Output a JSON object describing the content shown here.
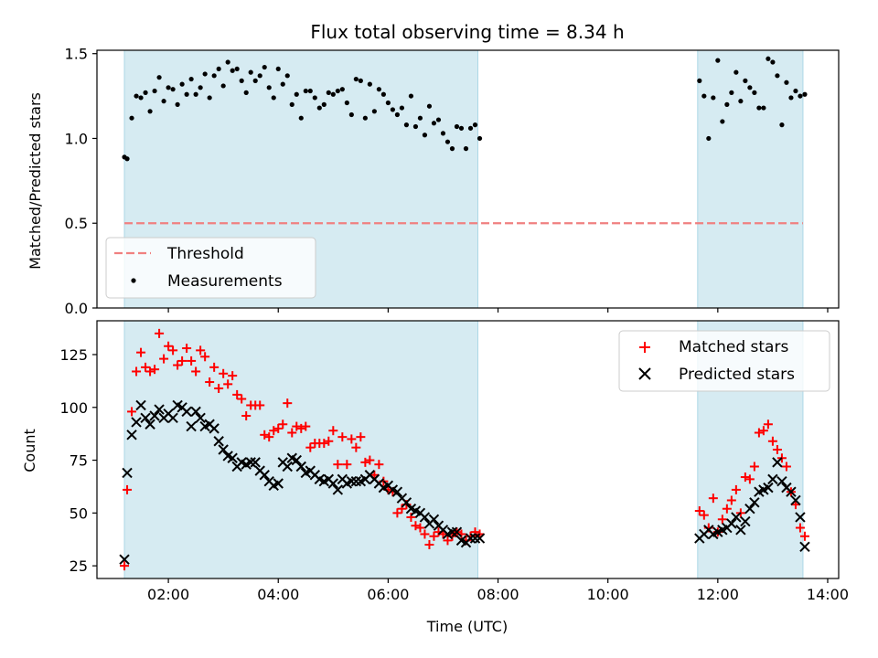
{
  "chart_data": [
    {
      "type": "scatter",
      "title": "Flux total observing time = 8.34 h",
      "ylabel": "Matched/Predicted stars",
      "xlabel": "",
      "ylim": [
        0,
        1.52
      ],
      "yticks": [
        "0.0",
        "0.5",
        "1.0",
        "1.5"
      ],
      "xlim": [
        "00:42",
        "14:12"
      ],
      "xticks": [
        "02:00",
        "04:00",
        "06:00",
        "08:00",
        "10:00",
        "12:00",
        "14:00"
      ],
      "shaded_intervals": [
        [
          "01:12",
          "07:38"
        ],
        [
          "11:38",
          "13:33"
        ]
      ],
      "threshold": {
        "name": "Threshold",
        "y": 0.5,
        "x_range": [
          "01:12",
          "13:33"
        ],
        "color": "#f08080"
      },
      "legend": {
        "placement": "lower-left",
        "entries": [
          "Threshold",
          "Measurements"
        ]
      },
      "series": [
        {
          "name": "Measurements",
          "color": "#000000",
          "marker": "dot",
          "x": [
            "01:12",
            "01:15",
            "01:20",
            "01:25",
            "01:30",
            "01:35",
            "01:40",
            "01:45",
            "01:50",
            "01:55",
            "02:00",
            "02:05",
            "02:10",
            "02:15",
            "02:20",
            "02:25",
            "02:30",
            "02:35",
            "02:40",
            "02:45",
            "02:50",
            "02:55",
            "03:00",
            "03:05",
            "03:10",
            "03:15",
            "03:20",
            "03:25",
            "03:30",
            "03:35",
            "03:40",
            "03:45",
            "03:50",
            "03:55",
            "04:00",
            "04:05",
            "04:10",
            "04:15",
            "04:20",
            "04:25",
            "04:30",
            "04:35",
            "04:40",
            "04:45",
            "04:50",
            "04:55",
            "05:00",
            "05:05",
            "05:10",
            "05:15",
            "05:20",
            "05:25",
            "05:30",
            "05:35",
            "05:40",
            "05:45",
            "05:50",
            "05:55",
            "06:00",
            "06:05",
            "06:10",
            "06:15",
            "06:20",
            "06:25",
            "06:30",
            "06:35",
            "06:40",
            "06:45",
            "06:50",
            "06:55",
            "07:00",
            "07:05",
            "07:10",
            "07:15",
            "07:20",
            "07:25",
            "07:30",
            "07:35",
            "07:40",
            "11:40",
            "11:45",
            "11:50",
            "11:55",
            "12:00",
            "12:05",
            "12:10",
            "12:15",
            "12:20",
            "12:25",
            "12:30",
            "12:35",
            "12:40",
            "12:45",
            "12:50",
            "12:55",
            "13:00",
            "13:05",
            "13:10",
            "13:15",
            "13:20",
            "13:25",
            "13:30",
            "13:35"
          ],
          "y": [
            0.89,
            0.88,
            1.12,
            1.25,
            1.24,
            1.27,
            1.16,
            1.28,
            1.36,
            1.22,
            1.3,
            1.29,
            1.2,
            1.32,
            1.26,
            1.35,
            1.26,
            1.3,
            1.38,
            1.24,
            1.37,
            1.41,
            1.31,
            1.45,
            1.4,
            1.41,
            1.34,
            1.27,
            1.39,
            1.34,
            1.37,
            1.42,
            1.3,
            1.24,
            1.41,
            1.32,
            1.37,
            1.2,
            1.26,
            1.12,
            1.28,
            1.28,
            1.24,
            1.18,
            1.2,
            1.27,
            1.26,
            1.28,
            1.29,
            1.21,
            1.14,
            1.35,
            1.34,
            1.12,
            1.32,
            1.16,
            1.29,
            1.26,
            1.21,
            1.17,
            1.14,
            1.18,
            1.08,
            1.25,
            1.07,
            1.12,
            1.02,
            1.19,
            1.09,
            1.11,
            1.03,
            0.98,
            0.94,
            1.07,
            1.06,
            0.94,
            1.06,
            1.08,
            1.0,
            1.34,
            1.25,
            1.0,
            1.24,
            1.46,
            1.1,
            1.2,
            1.27,
            1.39,
            1.22,
            1.34,
            1.3,
            1.27,
            1.18,
            1.18,
            1.47,
            1.45,
            1.37,
            1.08,
            1.33,
            1.24,
            1.28,
            1.25,
            1.26
          ]
        }
      ]
    },
    {
      "type": "scatter",
      "title": "",
      "ylabel": "Count",
      "xlabel": "Time (UTC)",
      "ylim": [
        19,
        141
      ],
      "yticks": [
        "25",
        "50",
        "75",
        "100",
        "125"
      ],
      "xlim": [
        "00:42",
        "14:12"
      ],
      "xticks": [
        "02:00",
        "04:00",
        "06:00",
        "08:00",
        "10:00",
        "12:00",
        "14:00"
      ],
      "shaded_intervals": [
        [
          "01:12",
          "07:38"
        ],
        [
          "11:38",
          "13:33"
        ]
      ],
      "legend": {
        "placement": "upper-right",
        "entries": [
          "Matched stars",
          "Predicted stars"
        ]
      },
      "series": [
        {
          "name": "Matched stars",
          "color": "#ff0000",
          "marker": "plus",
          "x": [
            "01:12",
            "01:15",
            "01:20",
            "01:25",
            "01:30",
            "01:35",
            "01:40",
            "01:45",
            "01:50",
            "01:55",
            "02:00",
            "02:05",
            "02:10",
            "02:15",
            "02:20",
            "02:25",
            "02:30",
            "02:35",
            "02:40",
            "02:45",
            "02:50",
            "02:55",
            "03:00",
            "03:05",
            "03:10",
            "03:15",
            "03:20",
            "03:25",
            "03:30",
            "03:35",
            "03:40",
            "03:45",
            "03:50",
            "03:55",
            "04:00",
            "04:05",
            "04:10",
            "04:15",
            "04:20",
            "04:25",
            "04:30",
            "04:35",
            "04:40",
            "04:45",
            "04:50",
            "04:55",
            "05:00",
            "05:05",
            "05:10",
            "05:15",
            "05:20",
            "05:25",
            "05:30",
            "05:35",
            "05:40",
            "05:45",
            "05:50",
            "05:55",
            "06:00",
            "06:05",
            "06:10",
            "06:15",
            "06:20",
            "06:25",
            "06:30",
            "06:35",
            "06:40",
            "06:45",
            "06:50",
            "06:55",
            "07:00",
            "07:05",
            "07:10",
            "07:15",
            "07:20",
            "07:25",
            "07:30",
            "07:35",
            "07:40",
            "11:40",
            "11:45",
            "11:50",
            "11:55",
            "12:00",
            "12:05",
            "12:10",
            "12:15",
            "12:20",
            "12:25",
            "12:30",
            "12:35",
            "12:40",
            "12:45",
            "12:50",
            "12:55",
            "13:00",
            "13:05",
            "13:10",
            "13:15",
            "13:20",
            "13:25",
            "13:30",
            "13:35"
          ],
          "y": [
            25,
            61,
            98,
            117,
            126,
            119,
            117,
            118,
            135,
            123,
            129,
            127,
            120,
            122,
            128,
            122,
            117,
            127,
            124,
            112,
            119,
            109,
            116,
            111,
            115,
            106,
            104,
            96,
            101,
            101,
            101,
            87,
            86,
            89,
            90,
            92,
            102,
            88,
            91,
            90,
            91,
            81,
            83,
            83,
            83,
            84,
            89,
            73,
            86,
            73,
            85,
            81,
            86,
            74,
            75,
            68,
            73,
            65,
            61,
            60,
            50,
            52,
            54,
            48,
            44,
            43,
            40,
            35,
            39,
            41,
            40,
            37,
            39,
            41,
            40,
            37,
            39,
            41,
            40,
            51,
            49,
            43,
            57,
            41,
            47,
            52,
            56,
            61,
            50,
            67,
            66,
            72,
            88,
            89,
            92,
            84,
            80,
            76,
            72,
            60,
            54,
            43,
            39
          ],
          "y_note": "values read from marks at the listed times"
        },
        {
          "name": "Predicted stars",
          "color": "#000000",
          "marker": "x",
          "x": [
            "01:12",
            "01:15",
            "01:20",
            "01:25",
            "01:30",
            "01:35",
            "01:40",
            "01:45",
            "01:50",
            "01:55",
            "02:00",
            "02:05",
            "02:10",
            "02:15",
            "02:20",
            "02:25",
            "02:30",
            "02:35",
            "02:40",
            "02:45",
            "02:50",
            "02:55",
            "03:00",
            "03:05",
            "03:10",
            "03:15",
            "03:20",
            "03:25",
            "03:30",
            "03:35",
            "03:40",
            "03:45",
            "03:50",
            "03:55",
            "04:00",
            "04:05",
            "04:10",
            "04:15",
            "04:20",
            "04:25",
            "04:30",
            "04:35",
            "04:40",
            "04:45",
            "04:50",
            "04:55",
            "05:00",
            "05:05",
            "05:10",
            "05:15",
            "05:20",
            "05:25",
            "05:30",
            "05:35",
            "05:40",
            "05:45",
            "05:50",
            "05:55",
            "06:00",
            "06:05",
            "06:10",
            "06:15",
            "06:20",
            "06:25",
            "06:30",
            "06:35",
            "06:40",
            "06:45",
            "06:50",
            "06:55",
            "07:00",
            "07:05",
            "07:10",
            "07:15",
            "07:20",
            "07:25",
            "07:30",
            "07:35",
            "07:40",
            "11:40",
            "11:45",
            "11:50",
            "11:55",
            "12:00",
            "12:05",
            "12:10",
            "12:15",
            "12:20",
            "12:25",
            "12:30",
            "12:35",
            "12:40",
            "12:45",
            "12:50",
            "12:55",
            "13:00",
            "13:05",
            "13:10",
            "13:15",
            "13:20",
            "13:25",
            "13:30",
            "13:35"
          ],
          "y": [
            28,
            69,
            87,
            93,
            101,
            95,
            92,
            96,
            99,
            95,
            97,
            95,
            101,
            100,
            98,
            91,
            98,
            95,
            91,
            92,
            90,
            84,
            80,
            77,
            76,
            72,
            74,
            73,
            74,
            74,
            70,
            68,
            65,
            63,
            64,
            74,
            72,
            76,
            75,
            72,
            69,
            70,
            68,
            66,
            65,
            66,
            64,
            61,
            66,
            64,
            65,
            65,
            65,
            66,
            68,
            66,
            64,
            62,
            63,
            61,
            60,
            57,
            55,
            52,
            51,
            50,
            48,
            45,
            47,
            44,
            42,
            40,
            41,
            41,
            37,
            36,
            38,
            38,
            38,
            38,
            40,
            42,
            40,
            41,
            42,
            43,
            45,
            48,
            42,
            46,
            52,
            55,
            60,
            61,
            62,
            66,
            74,
            65,
            62,
            60,
            56,
            48,
            34
          ],
          "y_note": "values read from marks at the listed times"
        }
      ]
    }
  ]
}
